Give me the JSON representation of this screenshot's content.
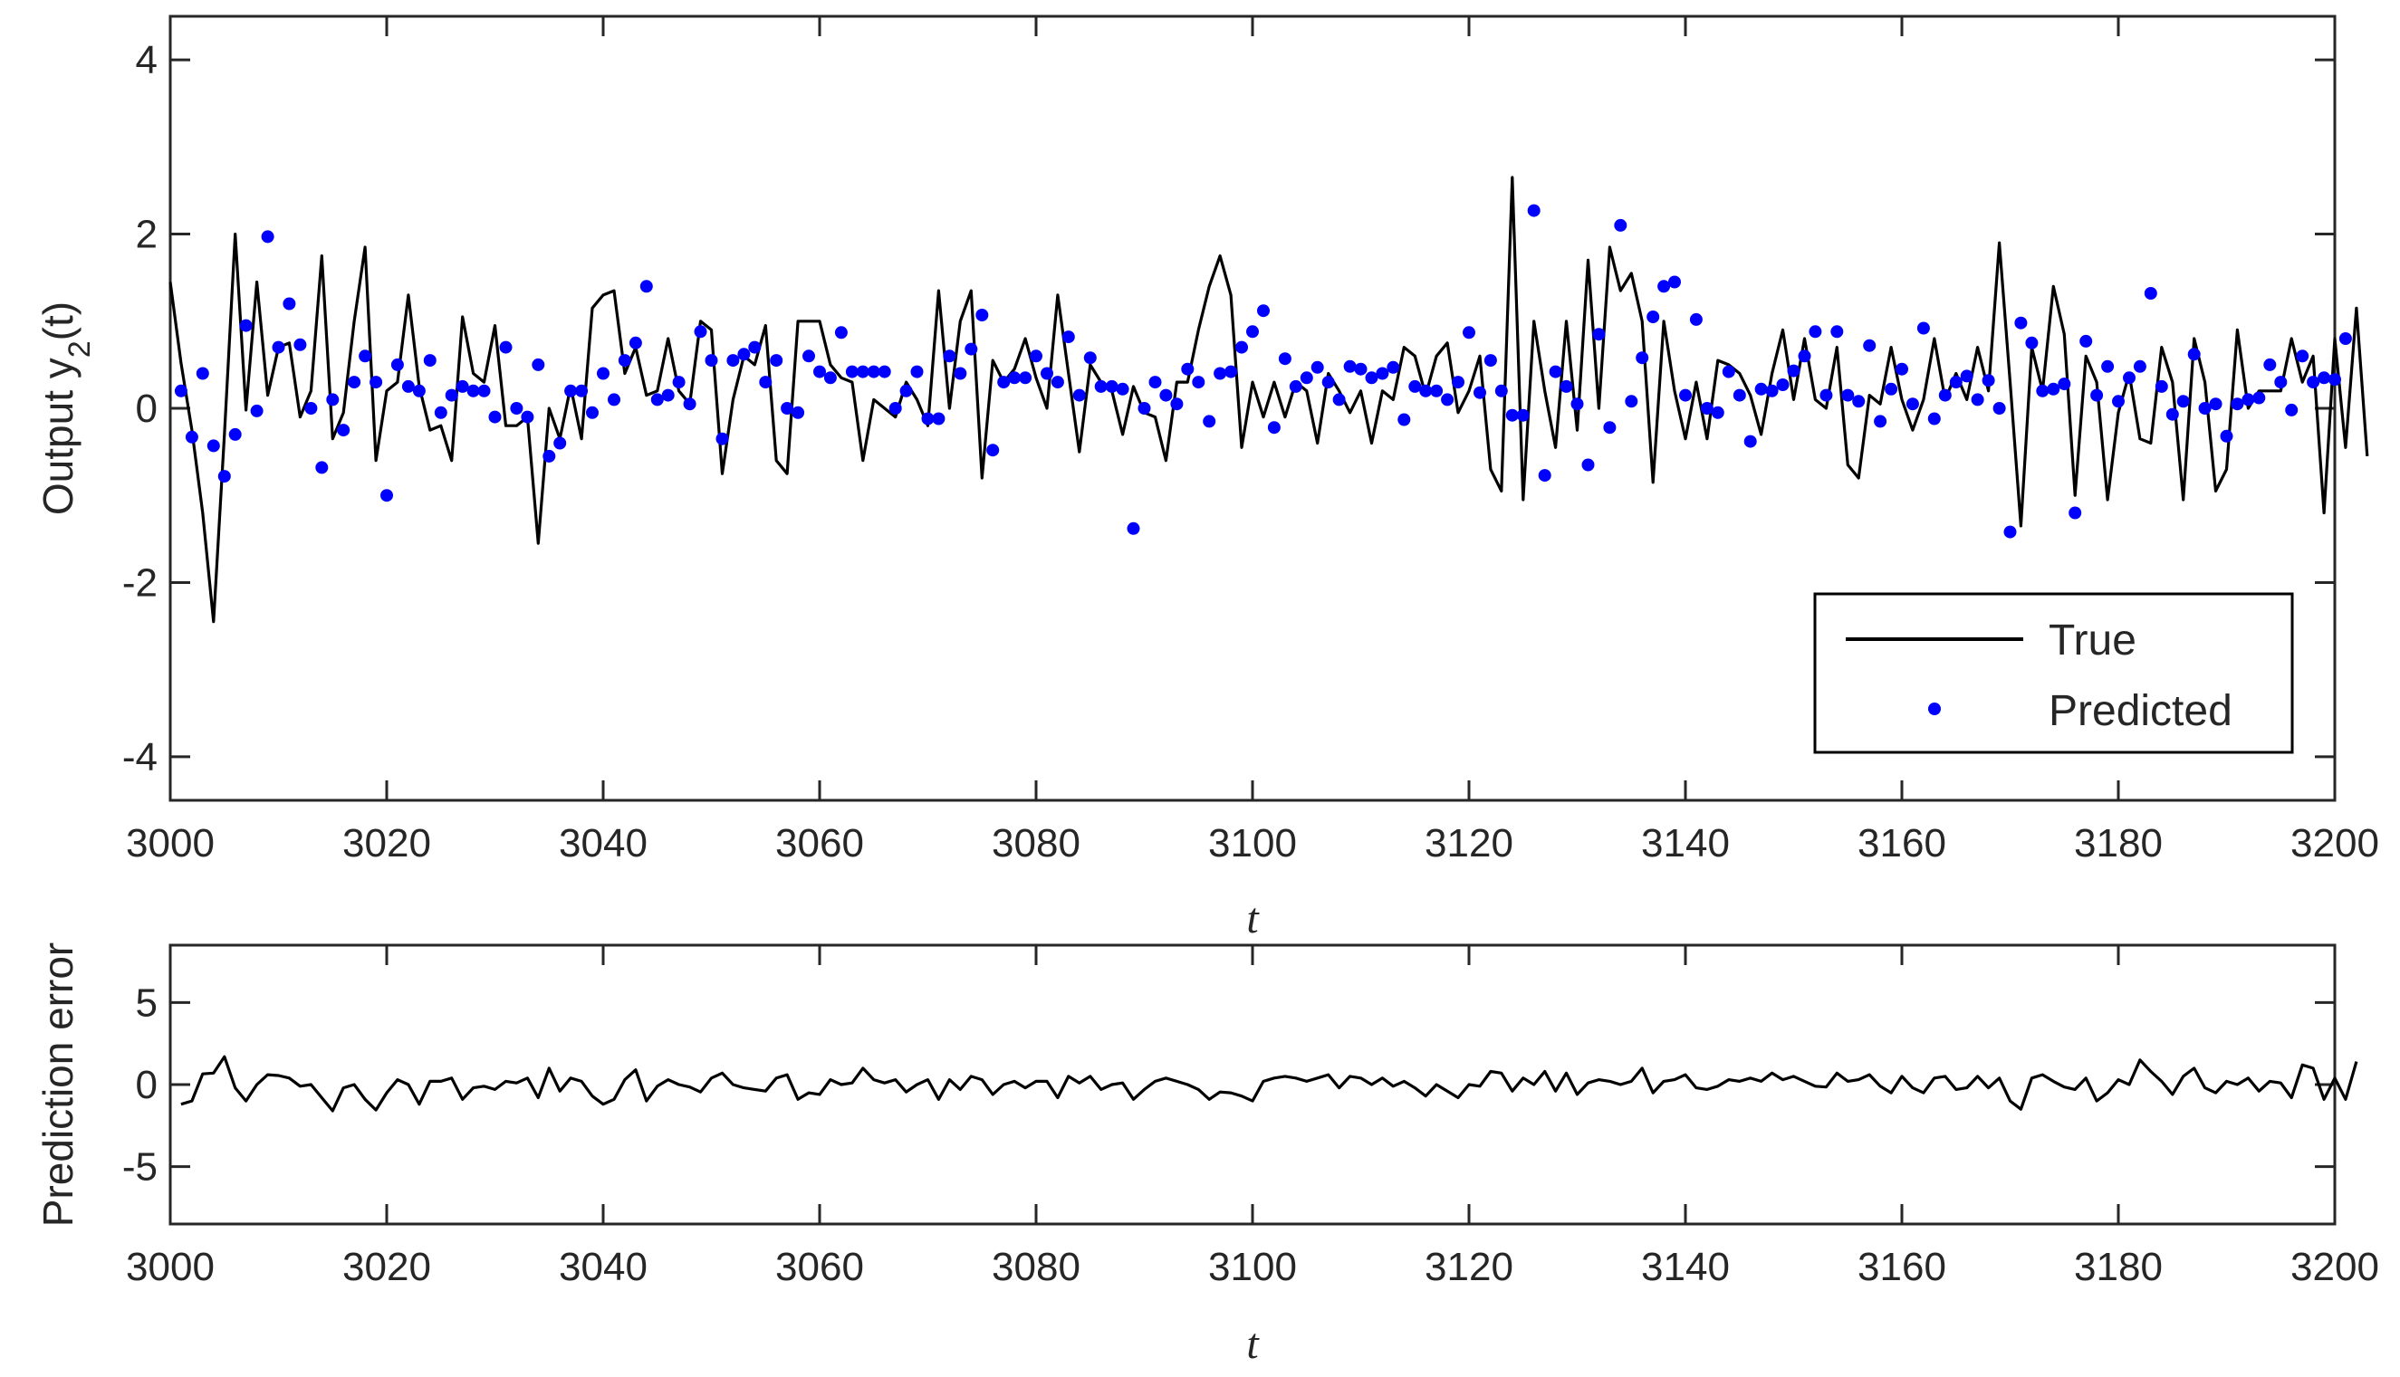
{
  "colors": {
    "true_line": "#000000",
    "predicted_markers": "#0000ff",
    "error_line": "#000000",
    "axes": "#262626"
  },
  "chart_data": [
    {
      "type": "line",
      "ylabel_main": "Output y",
      "ylabel_sub": "2",
      "ylabel_tail": "(t)",
      "xlabel": "t",
      "xlim": [
        3000,
        3200
      ],
      "ylim": [
        -4.5,
        4.5
      ],
      "xticks": [
        "3000",
        "3020",
        "3040",
        "3060",
        "3080",
        "3100",
        "3120",
        "3140",
        "3160",
        "3180",
        "3200"
      ],
      "yticks": [
        "4",
        "2",
        "0",
        "-2",
        "-4"
      ],
      "ytick_values": [
        4,
        2,
        0,
        -2,
        -4
      ],
      "legend_position": "bottom-right",
      "grid": false,
      "series": [
        {
          "name": "True",
          "style": "line",
          "x_start": 3000,
          "x_step": 1,
          "values": [
            1.45,
            0.52,
            -0.25,
            -1.2,
            -2.45,
            -0.3,
            2.0,
            -0.02,
            1.45,
            0.15,
            0.7,
            0.75,
            -0.1,
            0.2,
            1.75,
            -0.35,
            -0.05,
            1.0,
            1.85,
            -0.6,
            0.2,
            0.3,
            1.3,
            0.25,
            -0.25,
            -0.2,
            -0.6,
            1.05,
            0.4,
            0.3,
            0.95,
            -0.2,
            -0.2,
            -0.1,
            -1.55,
            0.0,
            -0.35,
            0.25,
            -0.35,
            1.15,
            1.3,
            1.35,
            0.4,
            0.7,
            0.15,
            0.2,
            0.8,
            0.2,
            0.05,
            1.0,
            0.9,
            -0.75,
            0.1,
            0.6,
            0.5,
            0.95,
            -0.6,
            -0.75,
            1.0,
            1.0,
            1.0,
            0.5,
            0.35,
            0.3,
            -0.6,
            0.1,
            0.0,
            -0.1,
            0.3,
            0.1,
            -0.2,
            1.35,
            0.0,
            1.0,
            1.35,
            -0.8,
            0.55,
            0.3,
            0.45,
            0.8,
            0.35,
            0.0,
            1.3,
            0.4,
            -0.5,
            0.5,
            0.3,
            0.2,
            -0.3,
            0.25,
            -0.05,
            -0.1,
            -0.6,
            0.3,
            0.3,
            0.9,
            1.4,
            1.75,
            1.3,
            -0.45,
            0.3,
            -0.1,
            0.3,
            -0.1,
            0.3,
            0.2,
            -0.4,
            0.4,
            0.2,
            -0.05,
            0.2,
            -0.4,
            0.2,
            0.1,
            0.7,
            0.6,
            0.15,
            0.6,
            0.75,
            -0.05,
            0.2,
            0.6,
            -0.7,
            -0.95,
            2.65,
            -1.05,
            1.0,
            0.2,
            -0.45,
            1.0,
            -0.25,
            1.7,
            0.0,
            1.85,
            1.35,
            1.55,
            1.0,
            -0.85,
            1.0,
            0.2,
            -0.35,
            0.3,
            -0.35,
            0.55,
            0.5,
            0.4,
            0.15,
            -0.3,
            0.4,
            0.9,
            0.1,
            0.8,
            0.1,
            0.0,
            0.7,
            -0.65,
            -0.8,
            0.15,
            0.05,
            0.7,
            0.1,
            -0.25,
            0.1,
            0.8,
            0.1,
            0.4,
            0.1,
            0.7,
            0.2,
            1.9,
            0.3,
            -1.35,
            0.7,
            0.2,
            1.4,
            0.85,
            -1.0,
            0.6,
            0.3,
            -1.05,
            -0.05,
            0.4,
            -0.35,
            -0.4,
            0.7,
            0.3,
            -1.05,
            0.8,
            0.3,
            -0.95,
            -0.7,
            0.9,
            0.0,
            0.2,
            0.2,
            0.2,
            0.8,
            0.3,
            0.6,
            -1.2,
            0.8,
            -0.45,
            1.15,
            -0.55
          ]
        },
        {
          "name": "Predicted",
          "style": "markers",
          "x_start": 3001,
          "x_step": 1,
          "values": [
            0.2,
            -0.33,
            0.4,
            -0.43,
            -0.78,
            -0.3,
            0.95,
            -0.03,
            1.97,
            0.7,
            1.2,
            0.73,
            0.0,
            -0.68,
            0.1,
            -0.25,
            0.3,
            0.6,
            0.3,
            -1.0,
            0.5,
            0.25,
            0.2,
            0.55,
            -0.05,
            0.15,
            0.25,
            0.2,
            0.2,
            -0.1,
            0.7,
            0.0,
            -0.1,
            0.5,
            -0.55,
            -0.4,
            0.2,
            0.2,
            -0.05,
            0.4,
            0.1,
            0.55,
            0.75,
            1.4,
            0.1,
            0.15,
            0.3,
            0.05,
            0.88,
            0.55,
            -0.35,
            0.55,
            0.62,
            0.7,
            0.3,
            0.55,
            0.0,
            -0.05,
            0.6,
            0.42,
            0.35,
            0.87,
            0.42,
            0.42,
            0.42,
            0.42,
            0.0,
            0.2,
            0.42,
            -0.12,
            -0.12,
            0.6,
            0.4,
            0.68,
            1.07,
            -0.48,
            0.3,
            0.35,
            0.35,
            0.6,
            0.4,
            0.3,
            0.82,
            0.15,
            0.58,
            0.25,
            0.25,
            0.22,
            -1.38,
            0.0,
            0.3,
            0.15,
            0.05,
            0.45,
            0.3,
            -0.15,
            0.4,
            0.42,
            0.7,
            0.88,
            1.12,
            -0.22,
            0.57,
            0.25,
            0.35,
            0.47,
            0.3,
            0.1,
            0.48,
            0.45,
            0.35,
            0.4,
            0.47,
            -0.13,
            0.25,
            0.2,
            0.2,
            0.1,
            0.3,
            0.87,
            0.18,
            0.55,
            0.2,
            -0.08,
            -0.08,
            2.27,
            -0.77,
            0.42,
            0.25,
            0.05,
            -0.65,
            0.85,
            -0.22,
            2.1,
            0.08,
            0.58,
            1.05,
            1.4,
            1.45,
            0.15,
            1.02,
            0.0,
            -0.05,
            0.42,
            0.15,
            -0.38,
            0.22,
            0.2,
            0.27,
            0.43,
            0.6,
            0.88,
            0.15,
            0.88,
            0.15,
            0.08,
            0.72,
            -0.15,
            0.22,
            0.45,
            0.05,
            0.92,
            -0.12,
            0.15,
            0.3,
            0.37,
            0.1,
            0.32,
            0.0,
            -1.42,
            0.98,
            0.75,
            0.2,
            0.22,
            0.28,
            -1.2,
            0.77,
            0.15,
            0.48,
            0.08,
            0.35,
            0.48,
            1.32,
            0.25,
            -0.07,
            0.08,
            0.62,
            0.0,
            0.05,
            -0.32,
            0.05,
            0.1,
            0.12,
            0.5,
            0.3,
            -0.02,
            0.6,
            0.3,
            0.35,
            0.33,
            0.8
          ]
        }
      ]
    },
    {
      "type": "line",
      "ylabel": "Prediction error",
      "xlabel": "t",
      "xlim": [
        3000,
        3200
      ],
      "ylim": [
        -8.5,
        8.5
      ],
      "xticks": [
        "3000",
        "3020",
        "3040",
        "3060",
        "3080",
        "3100",
        "3120",
        "3140",
        "3160",
        "3180",
        "3200"
      ],
      "yticks": [
        "5",
        "0",
        "-5"
      ],
      "ytick_values": [
        5,
        0,
        -5
      ],
      "grid": false,
      "series": [
        {
          "style": "line",
          "x_start": 3001,
          "x_step": 1,
          "values": [
            -1.2,
            -1.0,
            0.65,
            0.7,
            1.7,
            -0.2,
            -1.0,
            0.0,
            0.6,
            0.55,
            0.4,
            -0.1,
            0.0,
            -0.8,
            -1.6,
            -0.2,
            0.0,
            -0.9,
            -1.55,
            -0.5,
            0.3,
            0.0,
            -1.2,
            0.2,
            0.2,
            0.4,
            -0.9,
            -0.2,
            -0.1,
            -0.3,
            0.2,
            0.1,
            0.4,
            -0.8,
            1.0,
            -0.4,
            0.4,
            0.2,
            -0.7,
            -1.2,
            -0.9,
            0.3,
            0.9,
            -1.0,
            -0.1,
            0.3,
            0.0,
            -0.15,
            -0.45,
            0.4,
            0.7,
            0.0,
            -0.2,
            -0.3,
            -0.4,
            0.4,
            0.6,
            -0.9,
            -0.5,
            -0.6,
            0.3,
            0.0,
            0.1,
            1.0,
            0.3,
            0.1,
            0.3,
            -0.45,
            0.0,
            0.3,
            -0.9,
            0.3,
            -0.3,
            0.5,
            0.3,
            -0.6,
            0.0,
            0.2,
            -0.2,
            0.2,
            0.2,
            -0.8,
            0.5,
            0.1,
            0.5,
            -0.3,
            0.0,
            0.1,
            -0.9,
            -0.3,
            0.2,
            0.4,
            0.2,
            0.0,
            -0.3,
            -0.9,
            -0.45,
            -0.5,
            -0.7,
            -1.0,
            0.2,
            0.4,
            0.5,
            0.4,
            0.2,
            0.4,
            0.6,
            -0.2,
            0.5,
            0.4,
            0.0,
            0.4,
            -0.1,
            0.2,
            -0.2,
            -0.7,
            0.0,
            -0.4,
            -0.8,
            0.0,
            -0.1,
            0.8,
            0.7,
            -0.4,
            0.4,
            0.0,
            0.8,
            -0.4,
            0.7,
            -0.6,
            0.1,
            0.3,
            0.2,
            0.0,
            0.2,
            1.0,
            -0.5,
            0.2,
            0.3,
            0.6,
            -0.2,
            -0.3,
            -0.1,
            0.3,
            0.2,
            0.4,
            0.2,
            0.7,
            0.3,
            0.5,
            0.2,
            -0.1,
            -0.15,
            0.7,
            0.2,
            0.3,
            0.6,
            -0.1,
            -0.5,
            0.5,
            -0.2,
            -0.5,
            0.4,
            0.5,
            -0.3,
            -0.2,
            0.5,
            -0.2,
            0.4,
            -1.0,
            -1.5,
            0.4,
            0.6,
            0.2,
            -0.15,
            -0.3,
            0.4,
            -1.0,
            -0.5,
            0.3,
            0.0,
            1.5,
            0.8,
            0.2,
            -0.6,
            0.5,
            1.0,
            -0.2,
            -0.5,
            0.2,
            0.0,
            0.4,
            -0.4,
            0.2,
            0.1,
            -0.8,
            1.2,
            1.0,
            -0.9,
            0.4,
            -0.9,
            1.4
          ]
        }
      ]
    }
  ]
}
